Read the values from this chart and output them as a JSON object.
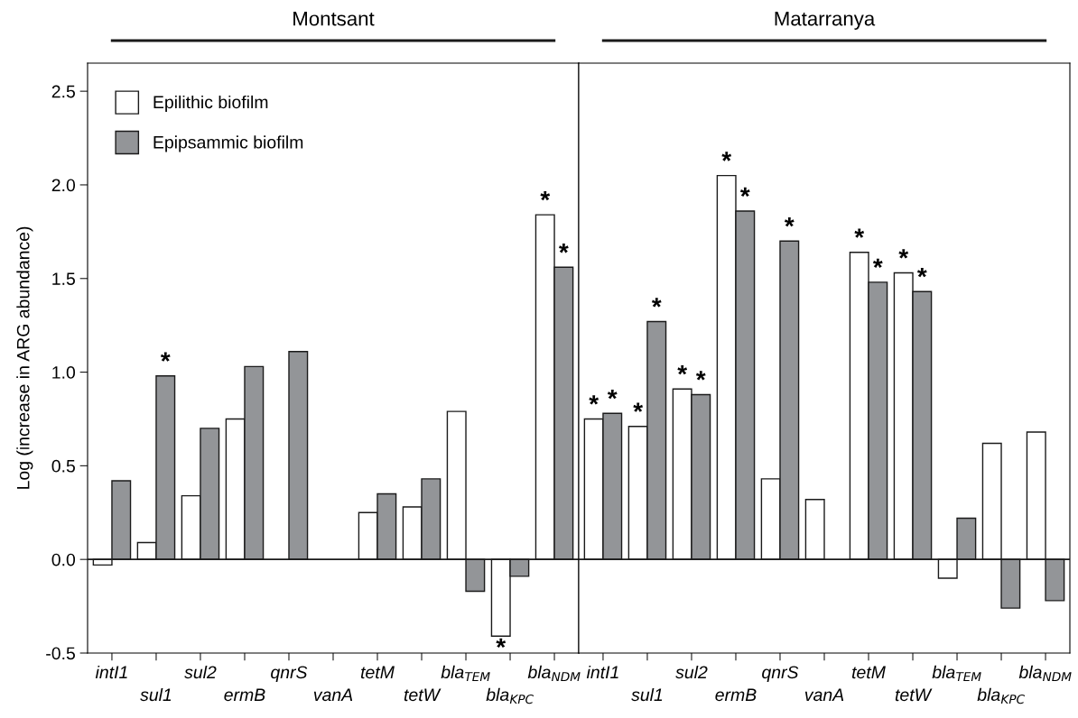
{
  "chart_data": [
    {
      "type": "bar",
      "title": "Montsant",
      "ylabel": "Log (increase in ARG abundance)",
      "categories": [
        "intI1",
        "sul1",
        "sul2",
        "ermB",
        "qnrS",
        "vanA",
        "tetM",
        "tetW",
        "bla$_{TEM}$",
        "bla$_{KPC}$",
        "bla$_{NDM}$"
      ],
      "series": [
        {
          "name": "Epilithic biofilm",
          "color": "#ffffff",
          "values": [
            -0.03,
            0.09,
            0.34,
            0.75,
            null,
            null,
            0.25,
            0.28,
            0.79,
            -0.41,
            1.84
          ],
          "value_labels": [
            null,
            null,
            null,
            null,
            null,
            null,
            null,
            null,
            null,
            "*",
            "*"
          ]
        },
        {
          "name": "Epipsammic biofilm",
          "color": "#939598",
          "values": [
            0.42,
            0.98,
            0.7,
            1.03,
            1.11,
            null,
            0.35,
            0.43,
            -0.17,
            -0.09,
            1.56
          ],
          "value_labels": [
            null,
            "*",
            null,
            null,
            null,
            null,
            null,
            null,
            null,
            null,
            "*"
          ]
        }
      ],
      "ylim": [
        -0.5,
        2.65
      ],
      "yticks": [
        -0.5,
        {
          "value": 0,
          "label": "0.0"
        },
        0.5,
        {
          "value": 1,
          "label": "1.0"
        },
        1.5,
        {
          "value": 2,
          "label": "2.0"
        },
        2.5
      ],
      "legend": "top left",
      "ref_lines": [
        {
          "axis": "y",
          "value": 0,
          "color": "#1a1a1a"
        }
      ]
    },
    {
      "type": "bar",
      "title": "Matarranya",
      "categories": [
        "intI1",
        "sul1",
        "sul2",
        "ermB",
        "qnrS",
        "vanA",
        "tetM",
        "tetW",
        "bla$_{TEM}$",
        "bla$_{KPC}$",
        "bla$_{NDM}$"
      ],
      "series": [
        {
          "color": "#ffffff",
          "values": [
            0.75,
            0.71,
            0.91,
            2.05,
            0.43,
            0.32,
            1.64,
            1.53,
            -0.1,
            0.62,
            0.68
          ],
          "value_labels": [
            "*",
            "*",
            "*",
            "*",
            null,
            null,
            "*",
            "*",
            null,
            null,
            null
          ]
        },
        {
          "color": "#939598",
          "values": [
            0.78,
            1.27,
            0.88,
            1.86,
            1.7,
            null,
            1.48,
            1.43,
            0.22,
            -0.26,
            -0.22
          ],
          "value_labels": [
            "*",
            "*",
            "*",
            "*",
            "*",
            null,
            "*",
            "*",
            null,
            null,
            null
          ]
        }
      ],
      "ylim": [
        -0.5,
        2.65
      ],
      "yticks": [
        -0.5,
        0,
        0.5,
        1,
        1.5,
        2,
        2.5
      ],
      "tick_labels": "x",
      "ref_lines": [
        {
          "axis": "y",
          "value": 0,
          "color": "#1a1a1a"
        }
      ]
    }
  ]
}
